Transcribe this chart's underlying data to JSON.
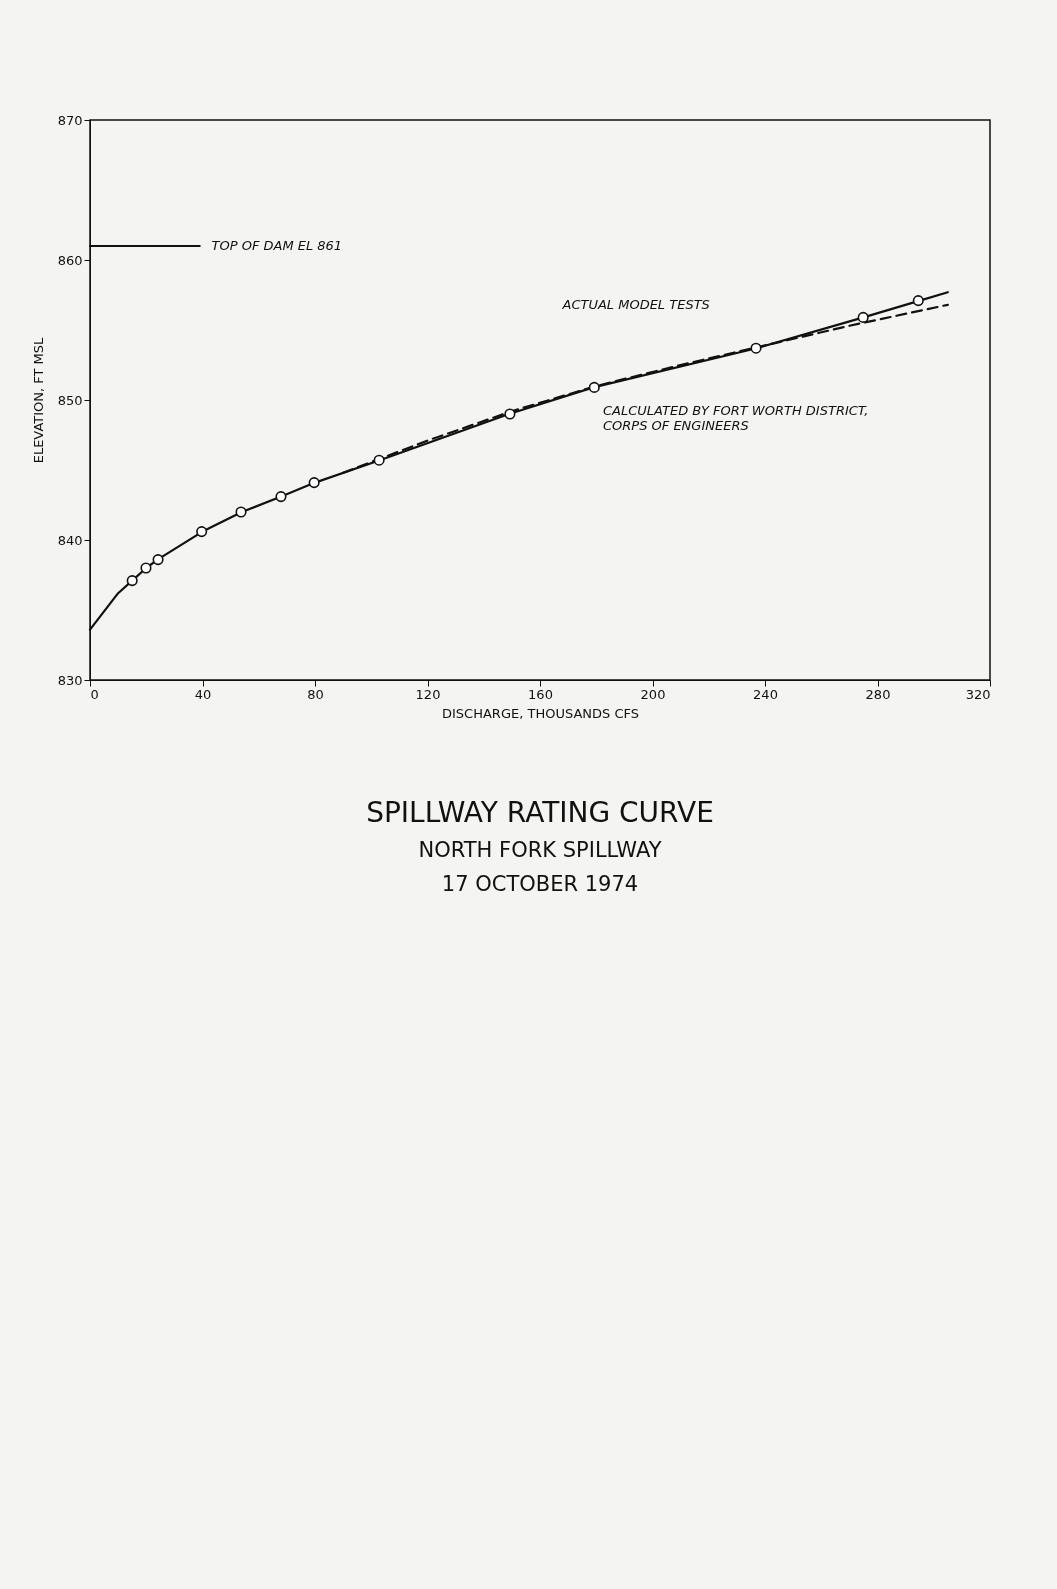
{
  "chart_data": {
    "type": "line",
    "title": "SPILLWAY RATING CURVE",
    "subtitle": "NORTH FORK SPILLWAY\n17 OCTOBER 1974",
    "xlabel": "DISCHARGE, THOUSANDS CFS",
    "ylabel": "ELEVATION, FT MSL",
    "xlim": [
      0,
      320
    ],
    "xticks": [
      0,
      40,
      80,
      120,
      160,
      200,
      240,
      280,
      320
    ],
    "ylim": [
      830,
      870
    ],
    "yticks": [
      830,
      840,
      850,
      860,
      870
    ],
    "series": [
      {
        "color": "#111111",
        "line_style": "solid",
        "x": [
          0,
          10,
          15,
          20,
          24,
          40,
          54,
          68,
          80,
          103,
          149,
          179,
          237,
          275,
          295,
          305
        ],
        "values": [
          833.6,
          836.2,
          837.1,
          838,
          838.6,
          840.6,
          842,
          843.1,
          844.1,
          845.7,
          849,
          850.9,
          853.7,
          855.9,
          857.1,
          857.7
        ]
      },
      {
        "color": "#111111",
        "line_style": "dashed",
        "x": [
          90,
          120,
          150,
          180,
          210,
          240,
          270,
          305
        ],
        "values": [
          844.8,
          847.1,
          849.2,
          851,
          852.5,
          853.9,
          855.3,
          856.8
        ]
      },
      {
        "type": "scatter",
        "color": "#111111",
        "marker": "circle",
        "x": [
          15,
          19.9,
          24.2,
          39.7,
          53.7,
          67.9,
          79.7,
          102.8,
          149.3,
          179.3,
          236.8,
          274.9,
          294.5
        ],
        "values": [
          837.1,
          838,
          838.6,
          840.6,
          842,
          843.1,
          844.1,
          845.7,
          849,
          850.9,
          853.7,
          855.9,
          857.1
        ]
      },
      {
        "color": "#111111",
        "line_style": "solid",
        "x": [
          0,
          39
        ],
        "values": [
          861,
          861
        ]
      }
    ],
    "annotations": [
      "TOP OF DAM EL 861",
      "ACTUAL MODEL TESTS",
      "CALCULATED BY FORT WORTH DISTRICT,\nCORPS OF ENGINEERS"
    ]
  }
}
